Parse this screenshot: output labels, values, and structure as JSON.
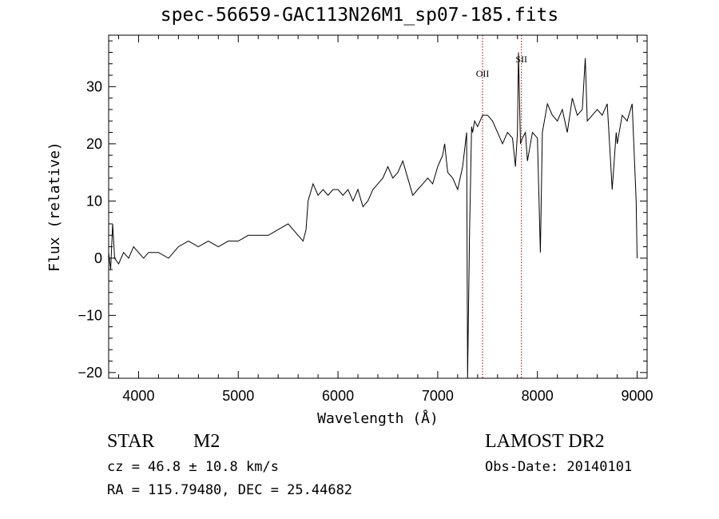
{
  "chart_data": {
    "type": "line",
    "title": "spec-56659-GAC113N26M1_sp07-185.fits",
    "xlabel": "Wavelength (Å)",
    "ylabel": "Flux (relative)",
    "xlim": [
      3700,
      9100
    ],
    "ylim": [
      -21,
      39
    ],
    "x_ticks": [
      4000,
      5000,
      6000,
      7000,
      8000,
      9000
    ],
    "y_ticks": [
      -20,
      -10,
      0,
      10,
      20,
      30
    ],
    "x_tick_labels": [
      "4000",
      "5000",
      "6000",
      "7000",
      "8000",
      "9000"
    ],
    "y_tick_labels": [
      "−20",
      "−10",
      "0",
      "10",
      "20",
      "30"
    ],
    "grid": false,
    "line_annotations": [
      {
        "label": "OII",
        "x": 7450
      },
      {
        "label": "SII",
        "x": 7840
      }
    ],
    "series": [
      {
        "color": "#000000",
        "x": [
          3700,
          3720,
          3740,
          3760,
          3800,
          3850,
          3900,
          3950,
          4000,
          4050,
          4100,
          4200,
          4300,
          4400,
          4500,
          4600,
          4700,
          4800,
          4900,
          5000,
          5100,
          5200,
          5300,
          5400,
          5500,
          5600,
          5650,
          5680,
          5700,
          5750,
          5800,
          5850,
          5900,
          5950,
          6000,
          6050,
          6100,
          6150,
          6200,
          6250,
          6300,
          6350,
          6400,
          6450,
          6500,
          6550,
          6600,
          6650,
          6700,
          6750,
          6800,
          6850,
          6900,
          6950,
          7000,
          7050,
          7070,
          7100,
          7150,
          7200,
          7250,
          7290,
          7300,
          7320,
          7330,
          7340,
          7350,
          7370,
          7400,
          7450,
          7500,
          7550,
          7600,
          7650,
          7700,
          7750,
          7780,
          7800,
          7810,
          7830,
          7850,
          7880,
          7900,
          7950,
          8000,
          8030,
          8050,
          8100,
          8150,
          8200,
          8250,
          8300,
          8350,
          8400,
          8450,
          8480,
          8500,
          8550,
          8600,
          8650,
          8700,
          8750,
          8790,
          8800,
          8850,
          8900,
          8950,
          8990,
          9000
        ],
        "y": [
          1,
          -2,
          6,
          0,
          -1,
          1,
          0,
          2,
          1,
          0,
          1,
          1,
          0,
          2,
          3,
          2,
          3,
          2,
          3,
          3,
          4,
          4,
          4,
          5,
          6,
          4,
          3,
          5,
          10,
          13,
          11,
          12,
          11,
          12,
          12,
          11,
          12,
          10,
          12,
          9,
          10,
          12,
          13,
          14,
          16,
          14,
          15,
          17,
          14,
          11,
          12,
          13,
          14,
          13,
          16,
          18,
          20,
          15,
          14,
          12,
          16,
          22,
          -21,
          5,
          14,
          23,
          22,
          24,
          23,
          25,
          25,
          24,
          22,
          20,
          22,
          21,
          16,
          22,
          36,
          20,
          21,
          22,
          17,
          22,
          21,
          1,
          22,
          27,
          25,
          24,
          26,
          22,
          28,
          25,
          26,
          35,
          24,
          25,
          26,
          25,
          27,
          12,
          22,
          20,
          25,
          24,
          27,
          10,
          0
        ]
      }
    ]
  },
  "footer": {
    "object_class": "STAR",
    "subclass": "M2",
    "survey": "LAMOST DR2",
    "cz": "cz = 46.8 ± 10.8 km/s",
    "obs_date": "Obs-Date: 20140101",
    "coords": "RA = 115.79480, DEC =  25.44682"
  }
}
